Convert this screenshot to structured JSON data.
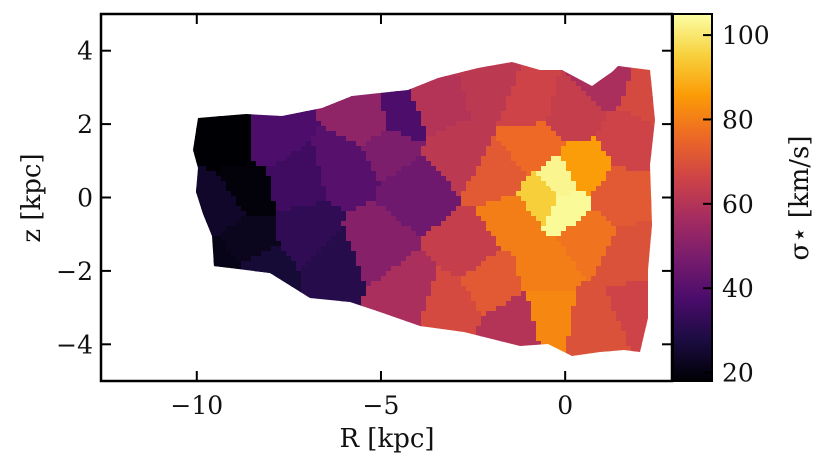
{
  "chart_data": {
    "type": "heatmap",
    "title": "",
    "xlabel": "R [kpc]",
    "ylabel": "z [kpc]",
    "xlim": [
      -12.6,
      2.9
    ],
    "ylim": [
      -5,
      5
    ],
    "x_ticks": [
      -10,
      -5,
      0
    ],
    "x_tick_labels": [
      "−10",
      "−5",
      "0"
    ],
    "y_ticks": [
      -4,
      -2,
      0,
      2,
      4
    ],
    "y_tick_labels": [
      "−4",
      "−2",
      "0",
      "2",
      "4"
    ],
    "colorbar": {
      "label": "σ⋆ [km/s]",
      "colormap": "inferno",
      "range": [
        18,
        105
      ],
      "ticks": [
        20,
        40,
        60,
        80,
        100
      ],
      "tick_labels": [
        "20",
        "40",
        "60",
        "80",
        "100"
      ],
      "colors": [
        "#000004",
        "#1b0c41",
        "#4a0c6b",
        "#781c6d",
        "#a52c60",
        "#cf4446",
        "#ed6925",
        "#fb9b06",
        "#f7d13d",
        "#fcffa4"
      ]
    },
    "regions": [
      {
        "R": -9.0,
        "z": 1.6,
        "sigma": 18
      },
      {
        "R": -8.7,
        "z": 0.2,
        "sigma": 19
      },
      {
        "R": -9.3,
        "z": -0.2,
        "sigma": 24
      },
      {
        "R": -8.0,
        "z": 1.6,
        "sigma": 38
      },
      {
        "R": -8.6,
        "z": -1.2,
        "sigma": 22
      },
      {
        "R": -9.4,
        "z": -1.9,
        "sigma": 21
      },
      {
        "R": -8.2,
        "z": -2.0,
        "sigma": 26
      },
      {
        "R": -7.3,
        "z": 0.5,
        "sigma": 35
      },
      {
        "R": -7.0,
        "z": -1.0,
        "sigma": 32
      },
      {
        "R": -6.3,
        "z": -1.7,
        "sigma": 30
      },
      {
        "R": -6.0,
        "z": 0.8,
        "sigma": 40
      },
      {
        "R": -5.3,
        "z": 2.1,
        "sigma": 52
      },
      {
        "R": -4.8,
        "z": 1.4,
        "sigma": 48
      },
      {
        "R": -4.5,
        "z": 2.2,
        "sigma": 38
      },
      {
        "R": -5.2,
        "z": -1.3,
        "sigma": 50
      },
      {
        "R": -4.2,
        "z": -2.6,
        "sigma": 58
      },
      {
        "R": -4.0,
        "z": 0.2,
        "sigma": 45
      },
      {
        "R": -3.5,
        "z": 2.6,
        "sigma": 60
      },
      {
        "R": -3.3,
        "z": -2.9,
        "sigma": 68
      },
      {
        "R": -2.9,
        "z": 1.2,
        "sigma": 62
      },
      {
        "R": -2.6,
        "z": -1.4,
        "sigma": 64
      },
      {
        "R": -2.0,
        "z": 3.0,
        "sigma": 62
      },
      {
        "R": -2.0,
        "z": -2.2,
        "sigma": 72
      },
      {
        "R": -1.8,
        "z": 0.6,
        "sigma": 72
      },
      {
        "R": -1.2,
        "z": -3.5,
        "sigma": 60
      },
      {
        "R": -1.0,
        "z": 2.6,
        "sigma": 66
      },
      {
        "R": -1.4,
        "z": -0.6,
        "sigma": 80
      },
      {
        "R": -0.9,
        "z": 1.4,
        "sigma": 76
      },
      {
        "R": -0.6,
        "z": -1.8,
        "sigma": 80
      },
      {
        "R": -0.6,
        "z": 0.0,
        "sigma": 95
      },
      {
        "R": -0.2,
        "z": 0.4,
        "sigma": 103
      },
      {
        "R": 0.0,
        "z": -0.3,
        "sigma": 104
      },
      {
        "R": -0.5,
        "z": -3.3,
        "sigma": 82
      },
      {
        "R": 0.2,
        "z": 2.3,
        "sigma": 64
      },
      {
        "R": 0.5,
        "z": 0.8,
        "sigma": 86
      },
      {
        "R": 0.6,
        "z": -1.0,
        "sigma": 78
      },
      {
        "R": 0.8,
        "z": -3.5,
        "sigma": 70
      },
      {
        "R": 1.1,
        "z": 3.2,
        "sigma": 58
      },
      {
        "R": 1.4,
        "z": 0.0,
        "sigma": 72
      },
      {
        "R": 1.7,
        "z": 1.6,
        "sigma": 66
      },
      {
        "R": 1.8,
        "z": -1.6,
        "sigma": 70
      },
      {
        "R": 2.0,
        "z": -3.0,
        "sigma": 66
      },
      {
        "R": 2.2,
        "z": 2.8,
        "sigma": 68
      }
    ]
  }
}
